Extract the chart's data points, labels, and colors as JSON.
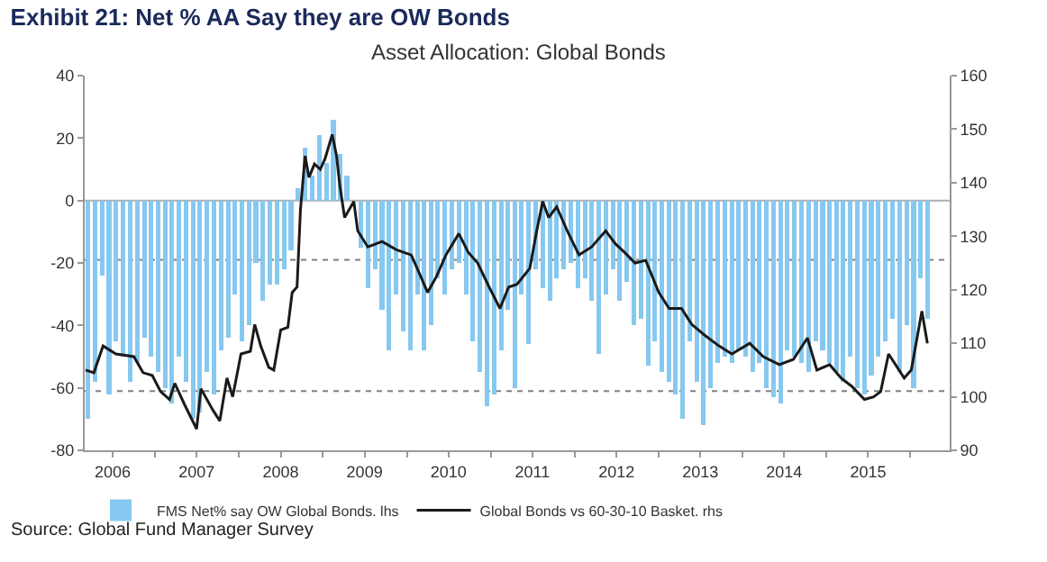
{
  "chart_data": {
    "type": "bar",
    "title": "Exhibit 21: Net % AA Say they are OW Bonds",
    "subtitle": "Asset Allocation: Global Bonds",
    "annotations": [
      "Source: Global Fund Manager Survey"
    ],
    "xlim": [
      "2006-03-01",
      "2016-06-20"
    ],
    "xticks": [
      {
        "value": "2006-07-01",
        "label": "2006"
      },
      {
        "value": "2007-01-01",
        "label": null
      },
      {
        "value": "2007-07-01",
        "label": "2007"
      },
      {
        "value": "2008-01-01",
        "label": null
      },
      {
        "value": "2008-07-01",
        "label": "2008"
      },
      {
        "value": "2009-01-01",
        "label": null
      },
      {
        "value": "2009-07-01",
        "label": "2009"
      },
      {
        "value": "2010-01-01",
        "label": null
      },
      {
        "value": "2010-07-01",
        "label": "2010"
      },
      {
        "value": "2011-01-01",
        "label": null
      },
      {
        "value": "2011-07-01",
        "label": "2011"
      },
      {
        "value": "2012-01-01",
        "label": null
      },
      {
        "value": "2012-07-01",
        "label": "2012"
      },
      {
        "value": "2013-01-01",
        "label": null
      },
      {
        "value": "2013-07-01",
        "label": "2013"
      },
      {
        "value": "2014-01-01",
        "label": null
      },
      {
        "value": "2014-07-01",
        "label": "2014"
      },
      {
        "value": "2015-01-01",
        "label": null
      },
      {
        "value": "2015-07-01",
        "label": "2015"
      },
      {
        "value": "2016-01-01",
        "label": null
      }
    ],
    "ylim": [
      -80,
      40
    ],
    "yticks": [
      -80,
      -60,
      -40,
      -20,
      0,
      20,
      40
    ],
    "y2lim": [
      90,
      160
    ],
    "y2ticks": [
      90,
      100,
      110,
      120,
      130,
      140,
      150,
      160
    ],
    "legend": "bottom",
    "ref_lines": [
      {
        "axis": "y",
        "value": 0,
        "color": "#b0b0b0",
        "line_style": "solid"
      },
      {
        "axis": "y",
        "value": -19,
        "color": "#808080",
        "line_style": "dotted"
      },
      {
        "axis": "y",
        "value": -61,
        "color": "#808080",
        "line_style": "dotted"
      }
    ],
    "series": [
      {
        "name": "FMS Net% say OW Global Bonds. lhs",
        "color": "#87c8f0",
        "x": [
          "2006-03-15",
          "2006-04-15",
          "2006-05-15",
          "2006-06-15",
          "2006-07-15",
          "2006-08-15",
          "2006-09-15",
          "2006-10-15",
          "2006-11-15",
          "2006-12-15",
          "2007-01-15",
          "2007-02-15",
          "2007-03-15",
          "2007-04-15",
          "2007-05-15",
          "2007-06-15",
          "2007-07-15",
          "2007-08-15",
          "2007-09-15",
          "2007-10-15",
          "2007-11-15",
          "2007-12-15",
          "2008-01-15",
          "2008-02-15",
          "2008-03-15",
          "2008-04-15",
          "2008-05-15",
          "2008-06-15",
          "2008-07-15",
          "2008-08-15",
          "2008-09-15",
          "2008-10-15",
          "2008-11-15",
          "2008-12-15",
          "2009-01-15",
          "2009-02-15",
          "2009-03-15",
          "2009-04-15",
          "2009-05-15",
          "2009-06-15",
          "2009-07-15",
          "2009-08-15",
          "2009-09-15",
          "2009-10-15",
          "2009-11-15",
          "2009-12-15",
          "2010-01-15",
          "2010-02-15",
          "2010-03-15",
          "2010-04-15",
          "2010-05-15",
          "2010-06-15",
          "2010-07-15",
          "2010-08-15",
          "2010-09-15",
          "2010-10-15",
          "2010-11-15",
          "2010-12-15",
          "2011-01-15",
          "2011-02-15",
          "2011-03-15",
          "2011-04-15",
          "2011-05-15",
          "2011-06-15",
          "2011-07-15",
          "2011-08-15",
          "2011-09-15",
          "2011-10-15",
          "2011-11-15",
          "2011-12-15",
          "2012-01-15",
          "2012-02-15",
          "2012-03-15",
          "2012-04-15",
          "2012-05-15",
          "2012-06-15",
          "2012-07-15",
          "2012-08-15",
          "2012-09-15",
          "2012-10-15",
          "2012-11-15",
          "2012-12-15",
          "2013-01-15",
          "2013-02-15",
          "2013-03-15",
          "2013-04-15",
          "2013-05-15",
          "2013-06-15",
          "2013-07-15",
          "2013-08-15",
          "2013-09-15",
          "2013-10-15",
          "2013-11-15",
          "2013-12-15",
          "2014-01-15",
          "2014-02-15",
          "2014-03-15",
          "2014-04-15",
          "2014-05-15",
          "2014-06-15",
          "2014-07-15",
          "2014-08-15",
          "2014-09-15",
          "2014-10-15",
          "2014-11-15",
          "2014-12-15",
          "2015-01-15",
          "2015-02-15",
          "2015-03-15",
          "2015-04-15",
          "2015-05-15",
          "2015-06-15",
          "2015-07-15",
          "2015-08-15",
          "2015-09-15",
          "2015-10-15",
          "2015-11-15",
          "2015-12-15",
          "2016-01-15",
          "2016-02-15",
          "2016-03-15"
        ],
        "values": [
          -70,
          -58,
          -24,
          -62,
          -45,
          -50,
          -58,
          -52,
          -44,
          -50,
          -55,
          -60,
          -65,
          -50,
          -58,
          -70,
          -68,
          -55,
          -62,
          -48,
          -44,
          -30,
          -45,
          -40,
          -20,
          -32,
          -27,
          -27,
          -22,
          -16,
          4,
          17,
          8,
          21,
          12,
          26,
          15,
          8,
          null,
          -15,
          -28,
          -22,
          -35,
          -48,
          -30,
          -42,
          -48,
          -30,
          -48,
          -40,
          -25,
          -30,
          -22,
          -20,
          -30,
          -45,
          -55,
          -66,
          -62,
          -48,
          -35,
          -60,
          -30,
          -46,
          -22,
          -28,
          -32,
          -25,
          -22,
          -20,
          -28,
          -25,
          -32,
          -49,
          -30,
          -22,
          -32,
          -26,
          -40,
          -38,
          -53,
          -45,
          -55,
          -58,
          -62,
          -70,
          -45,
          -58,
          -72,
          -60,
          -52,
          -50,
          -52,
          -48,
          -50,
          -55,
          -52,
          -60,
          -63,
          -65,
          -48,
          -50,
          -52,
          -55,
          -45,
          -48,
          -52,
          -55,
          -58,
          -50,
          -60,
          -62,
          -56,
          -50,
          -45,
          -38,
          -55,
          -40,
          -60,
          -25,
          -38
        ]
      },
      {
        "type": "line",
        "axis": "y2",
        "name": "Global Bonds vs 60-30-10 Basket. rhs",
        "color": "#1a1a1a",
        "x": [
          "2006-03-05",
          "2006-04-10",
          "2006-05-20",
          "2006-07-15",
          "2006-10-01",
          "2006-11-10",
          "2006-12-20",
          "2007-01-25",
          "2007-03-05",
          "2007-03-28",
          "2007-05-10",
          "2007-07-01",
          "2007-07-20",
          "2007-09-10",
          "2007-10-10",
          "2007-11-10",
          "2007-12-05",
          "2008-01-10",
          "2008-02-20",
          "2008-03-10",
          "2008-04-05",
          "2008-05-10",
          "2008-06-01",
          "2008-07-01",
          "2008-08-01",
          "2008-08-20",
          "2008-09-10",
          "2008-09-25",
          "2008-10-15",
          "2008-11-01",
          "2008-11-25",
          "2008-12-20",
          "2009-01-10",
          "2009-02-10",
          "2009-03-01",
          "2009-03-15",
          "2009-04-05",
          "2009-05-15",
          "2009-06-01",
          "2009-07-15",
          "2009-09-15",
          "2009-11-15",
          "2010-01-20",
          "2010-02-25",
          "2010-04-01",
          "2010-05-10",
          "2010-06-20",
          "2010-08-15",
          "2010-09-25",
          "2010-11-05",
          "2010-12-25",
          "2011-02-10",
          "2011-03-20",
          "2011-04-25",
          "2011-06-20",
          "2011-07-20",
          "2011-08-15",
          "2011-09-10",
          "2011-10-15",
          "2011-11-30",
          "2012-01-20",
          "2012-03-15",
          "2012-05-15",
          "2012-06-28",
          "2012-08-05",
          "2012-09-20",
          "2012-11-05",
          "2013-01-01",
          "2013-02-15",
          "2013-04-10",
          "2013-05-25",
          "2013-07-20",
          "2013-09-20",
          "2013-11-15",
          "2014-02-01",
          "2014-04-01",
          "2014-06-10",
          "2014-08-10",
          "2014-10-10",
          "2014-11-20",
          "2015-01-15",
          "2015-03-05",
          "2015-04-20",
          "2015-06-15",
          "2015-07-25",
          "2015-08-25",
          "2015-09-28",
          "2015-11-05",
          "2015-12-05",
          "2016-01-05",
          "2016-01-30",
          "2016-02-20",
          "2016-03-15"
        ],
        "values": [
          105,
          104.5,
          109.5,
          108,
          107.5,
          104.5,
          104,
          101,
          99.5,
          102.5,
          98.5,
          94,
          101.5,
          97.5,
          95.5,
          103.5,
          100,
          108,
          108.5,
          113.5,
          109.5,
          105.5,
          105,
          112.5,
          113,
          119.5,
          120.5,
          135,
          145,
          141,
          143.5,
          142.5,
          144.5,
          149,
          145,
          139.5,
          133.5,
          136.5,
          131,
          128,
          129,
          127.5,
          126.5,
          123,
          119.5,
          122.5,
          126.5,
          130.5,
          127,
          125,
          120.5,
          116.5,
          120.5,
          121,
          124,
          131,
          136.5,
          133.5,
          135.5,
          131,
          126.5,
          128,
          131,
          128.5,
          127,
          125,
          125.5,
          119.5,
          116.5,
          116.5,
          113.5,
          111.5,
          109.5,
          108,
          110,
          107.5,
          106,
          107,
          111,
          105,
          106,
          103.5,
          102,
          99.5,
          100,
          101,
          108,
          105.5,
          103.5,
          105,
          111,
          116,
          110
        ]
      }
    ]
  }
}
